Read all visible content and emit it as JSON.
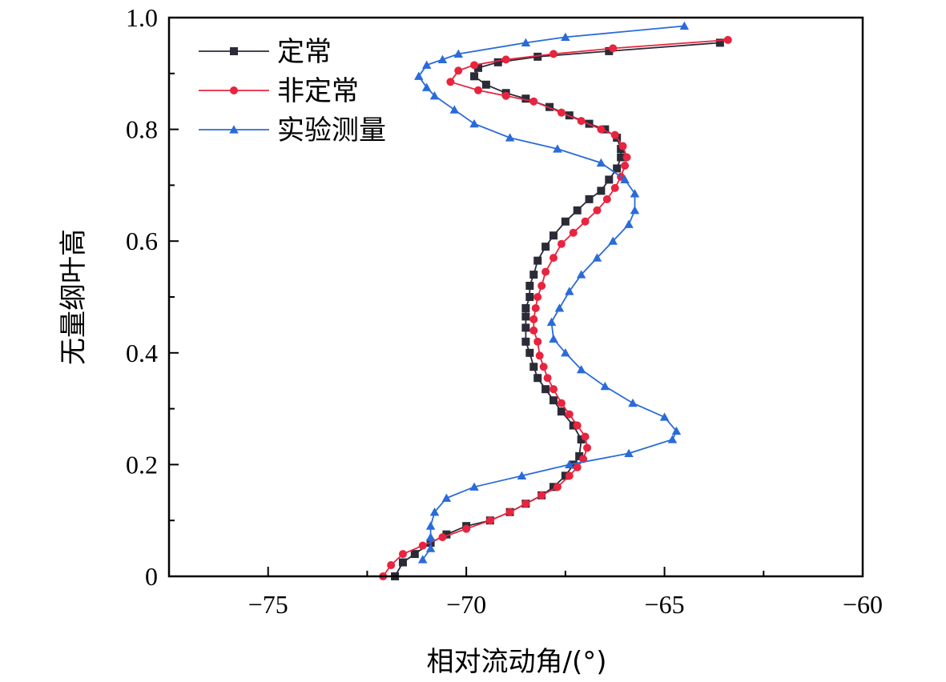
{
  "chart_data": {
    "type": "line",
    "title": "",
    "xlabel": "相对流动角/(°)",
    "ylabel": "无量纲叶高",
    "xlim": [
      -77.5,
      -60
    ],
    "ylim": [
      0,
      1.0
    ],
    "x_ticks": [
      -75,
      -70,
      -65,
      -60
    ],
    "x_tick_labels": [
      "−75",
      "−70",
      "−65",
      "−60"
    ],
    "y_ticks": [
      0,
      0.2,
      0.4,
      0.6,
      0.8,
      1.0
    ],
    "y_tick_labels": [
      "0",
      "0.2",
      "0.4",
      "0.6",
      "0.8",
      "1.0"
    ],
    "grid": false,
    "legend_position": "top-left",
    "series": [
      {
        "name": "定常",
        "color": "#2b2b38",
        "marker": "square",
        "points": [
          [
            -71.8,
            0.0
          ],
          [
            -71.6,
            0.025
          ],
          [
            -71.3,
            0.04
          ],
          [
            -70.9,
            0.06
          ],
          [
            -70.5,
            0.075
          ],
          [
            -70.0,
            0.09
          ],
          [
            -69.4,
            0.1
          ],
          [
            -68.9,
            0.115
          ],
          [
            -68.5,
            0.13
          ],
          [
            -68.1,
            0.145
          ],
          [
            -67.8,
            0.16
          ],
          [
            -67.5,
            0.18
          ],
          [
            -67.3,
            0.2
          ],
          [
            -67.15,
            0.215
          ],
          [
            -67.1,
            0.245
          ],
          [
            -67.3,
            0.27
          ],
          [
            -67.6,
            0.295
          ],
          [
            -67.8,
            0.315
          ],
          [
            -68.0,
            0.335
          ],
          [
            -68.2,
            0.355
          ],
          [
            -68.3,
            0.375
          ],
          [
            -68.4,
            0.4
          ],
          [
            -68.5,
            0.42
          ],
          [
            -68.5,
            0.445
          ],
          [
            -68.5,
            0.465
          ],
          [
            -68.5,
            0.48
          ],
          [
            -68.4,
            0.5
          ],
          [
            -68.4,
            0.52
          ],
          [
            -68.3,
            0.54
          ],
          [
            -68.2,
            0.565
          ],
          [
            -68.0,
            0.59
          ],
          [
            -67.8,
            0.61
          ],
          [
            -67.5,
            0.635
          ],
          [
            -67.2,
            0.655
          ],
          [
            -66.9,
            0.675
          ],
          [
            -66.6,
            0.69
          ],
          [
            -66.4,
            0.71
          ],
          [
            -66.2,
            0.73
          ],
          [
            -66.1,
            0.75
          ],
          [
            -66.1,
            0.765
          ],
          [
            -66.2,
            0.785
          ],
          [
            -66.5,
            0.8
          ],
          [
            -66.9,
            0.81
          ],
          [
            -67.4,
            0.825
          ],
          [
            -67.9,
            0.84
          ],
          [
            -68.5,
            0.855
          ],
          [
            -69.0,
            0.865
          ],
          [
            -69.5,
            0.88
          ],
          [
            -69.8,
            0.895
          ],
          [
            -69.7,
            0.91
          ],
          [
            -69.2,
            0.92
          ],
          [
            -68.2,
            0.93
          ],
          [
            -66.4,
            0.94
          ],
          [
            -63.6,
            0.955
          ]
        ]
      },
      {
        "name": "非定常",
        "color": "#e8243f",
        "marker": "circle",
        "points": [
          [
            -72.1,
            0.0
          ],
          [
            -71.9,
            0.02
          ],
          [
            -71.6,
            0.04
          ],
          [
            -71.1,
            0.055
          ],
          [
            -70.6,
            0.07
          ],
          [
            -70.0,
            0.085
          ],
          [
            -69.4,
            0.1
          ],
          [
            -68.9,
            0.115
          ],
          [
            -68.5,
            0.13
          ],
          [
            -68.1,
            0.145
          ],
          [
            -67.7,
            0.16
          ],
          [
            -67.4,
            0.18
          ],
          [
            -67.2,
            0.195
          ],
          [
            -67.05,
            0.21
          ],
          [
            -66.95,
            0.23
          ],
          [
            -67.0,
            0.25
          ],
          [
            -67.2,
            0.27
          ],
          [
            -67.4,
            0.29
          ],
          [
            -67.6,
            0.31
          ],
          [
            -67.8,
            0.335
          ],
          [
            -67.95,
            0.355
          ],
          [
            -68.05,
            0.375
          ],
          [
            -68.15,
            0.395
          ],
          [
            -68.2,
            0.42
          ],
          [
            -68.3,
            0.44
          ],
          [
            -68.3,
            0.46
          ],
          [
            -68.25,
            0.48
          ],
          [
            -68.2,
            0.5
          ],
          [
            -68.1,
            0.52
          ],
          [
            -68.0,
            0.545
          ],
          [
            -67.8,
            0.57
          ],
          [
            -67.6,
            0.595
          ],
          [
            -67.3,
            0.615
          ],
          [
            -67.0,
            0.635
          ],
          [
            -66.7,
            0.655
          ],
          [
            -66.45,
            0.675
          ],
          [
            -66.25,
            0.695
          ],
          [
            -66.1,
            0.715
          ],
          [
            -66.0,
            0.735
          ],
          [
            -65.95,
            0.75
          ],
          [
            -66.05,
            0.77
          ],
          [
            -66.25,
            0.79
          ],
          [
            -66.6,
            0.8
          ],
          [
            -67.1,
            0.815
          ],
          [
            -67.6,
            0.83
          ],
          [
            -68.3,
            0.85
          ],
          [
            -69.0,
            0.86
          ],
          [
            -69.7,
            0.87
          ],
          [
            -70.4,
            0.885
          ],
          [
            -70.2,
            0.905
          ],
          [
            -69.8,
            0.915
          ],
          [
            -69.0,
            0.925
          ],
          [
            -67.8,
            0.935
          ],
          [
            -66.3,
            0.945
          ],
          [
            -63.4,
            0.96
          ]
        ]
      },
      {
        "name": "实验测量",
        "color": "#2a6bd9",
        "marker": "triangle",
        "points": [
          [
            -71.1,
            0.03
          ],
          [
            -70.9,
            0.05
          ],
          [
            -70.9,
            0.07
          ],
          [
            -70.9,
            0.09
          ],
          [
            -70.8,
            0.115
          ],
          [
            -70.5,
            0.14
          ],
          [
            -69.8,
            0.16
          ],
          [
            -68.6,
            0.18
          ],
          [
            -67.4,
            0.2
          ],
          [
            -65.9,
            0.22
          ],
          [
            -64.8,
            0.245
          ],
          [
            -64.7,
            0.26
          ],
          [
            -65.0,
            0.285
          ],
          [
            -65.8,
            0.31
          ],
          [
            -66.5,
            0.34
          ],
          [
            -67.1,
            0.37
          ],
          [
            -67.5,
            0.4
          ],
          [
            -67.8,
            0.425
          ],
          [
            -67.85,
            0.455
          ],
          [
            -67.65,
            0.48
          ],
          [
            -67.4,
            0.51
          ],
          [
            -67.1,
            0.54
          ],
          [
            -66.7,
            0.57
          ],
          [
            -66.3,
            0.6
          ],
          [
            -65.9,
            0.63
          ],
          [
            -65.75,
            0.655
          ],
          [
            -65.75,
            0.685
          ],
          [
            -66.0,
            0.71
          ],
          [
            -66.6,
            0.74
          ],
          [
            -67.7,
            0.765
          ],
          [
            -68.9,
            0.785
          ],
          [
            -69.8,
            0.81
          ],
          [
            -70.3,
            0.835
          ],
          [
            -70.8,
            0.86
          ],
          [
            -71.0,
            0.875
          ],
          [
            -71.2,
            0.895
          ],
          [
            -71.0,
            0.915
          ],
          [
            -70.6,
            0.925
          ],
          [
            -70.2,
            0.935
          ],
          [
            -68.5,
            0.955
          ],
          [
            -67.5,
            0.965
          ],
          [
            -64.5,
            0.985
          ]
        ]
      }
    ]
  }
}
